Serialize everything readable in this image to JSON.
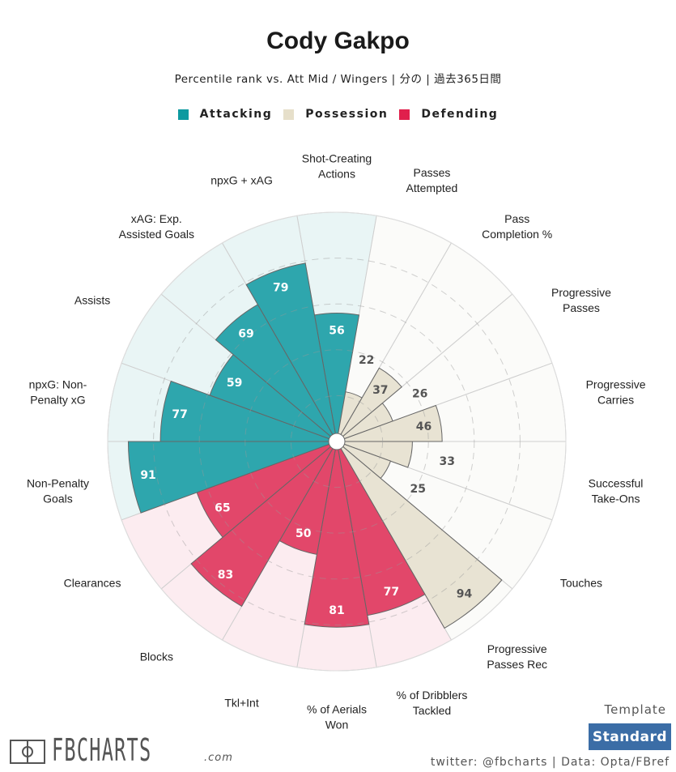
{
  "header": {
    "title": "Cody Gakpo",
    "subtitle": "Percentile rank vs. Att Mid / Wingers | 分の | 過去365日間"
  },
  "legend": [
    {
      "label": "Attacking",
      "color": "#0e9aa0"
    },
    {
      "label": "Possession",
      "color": "#e6dfca"
    },
    {
      "label": "Defending",
      "color": "#e01f4c"
    }
  ],
  "chart_data": {
    "type": "polar-bar",
    "title": "Cody Gakpo",
    "rlim": [
      0,
      100
    ],
    "gridlines": [
      20,
      40,
      60,
      80
    ],
    "start": "top, clockwise",
    "groups": {
      "Attacking": {
        "bar": "#2ea6ad",
        "bg": "#e9f5f5",
        "text": "#ffffff"
      },
      "Possession": {
        "bar": "#e8e3d3",
        "bg": "#fbfbf9",
        "text": "#555555"
      },
      "Defending": {
        "bar": "#e2476a",
        "bg": "#fcecf0",
        "text": "#ffffff"
      }
    },
    "categories": [
      {
        "label": "Shot-Creating\nActions",
        "value": 56,
        "group": "Attacking"
      },
      {
        "label": "Passes\nAttempted",
        "value": 22,
        "group": "Possession"
      },
      {
        "label": "Pass\nCompletion %",
        "value": 37,
        "group": "Possession"
      },
      {
        "label": "Progressive\nPasses",
        "value": 26,
        "group": "Possession"
      },
      {
        "label": "Progressive\nCarries",
        "value": 46,
        "group": "Possession"
      },
      {
        "label": "Successful\nTake-Ons",
        "value": 33,
        "group": "Possession"
      },
      {
        "label": "Touches",
        "value": 25,
        "group": "Possession"
      },
      {
        "label": "Progressive\nPasses Rec",
        "value": 94,
        "group": "Possession"
      },
      {
        "label": "% of Dribblers\nTackled",
        "value": 77,
        "group": "Defending"
      },
      {
        "label": "% of Aerials\nWon",
        "value": 81,
        "group": "Defending"
      },
      {
        "label": "Tkl+Int",
        "value": 50,
        "group": "Defending"
      },
      {
        "label": "Blocks",
        "value": 83,
        "group": "Defending"
      },
      {
        "label": "Clearances",
        "value": 65,
        "group": "Defending"
      },
      {
        "label": "Non-Penalty\nGoals",
        "value": 91,
        "group": "Attacking"
      },
      {
        "label": "npxG: Non-\nPenalty xG",
        "value": 77,
        "group": "Attacking"
      },
      {
        "label": "Assists",
        "value": 59,
        "group": "Attacking"
      },
      {
        "label": "xAG: Exp.\nAssisted Goals",
        "value": 69,
        "group": "Attacking"
      },
      {
        "label": "npxG + xAG",
        "value": 79,
        "group": "Attacking"
      }
    ]
  },
  "footer": {
    "template_label": "Template",
    "template_value": "Standard",
    "credit": "twitter: @fbcharts | Data: Opta/FBref",
    "logo_text": "FBCHARTS",
    "logo_suffix": ".com"
  }
}
